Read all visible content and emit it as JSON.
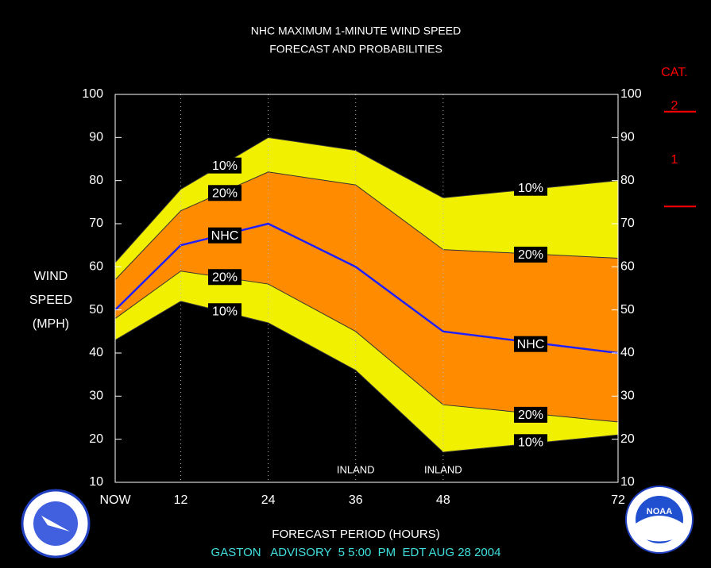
{
  "chart_data": {
    "type": "band",
    "title": [
      "NHC MAXIMUM 1-MINUTE WIND SPEED",
      "FORECAST AND PROBABILITIES"
    ],
    "y_label": [
      "WIND",
      "SPEED",
      "(MPH)"
    ],
    "x_label": "FORECAST PERIOD (HOURS)",
    "footer": "GASTON   ADVISORY  5 5:00  PM  EDT AUG 28 2004",
    "x": [
      3,
      12,
      24,
      36,
      48,
      72
    ],
    "xlim": [
      3,
      72
    ],
    "xticks": [
      {
        "value": 3,
        "label": "NOW"
      },
      12,
      24,
      36,
      48,
      72
    ],
    "ylim": [
      10,
      100
    ],
    "yticks": [
      10,
      20,
      30,
      40,
      50,
      60,
      70,
      80,
      90,
      100
    ],
    "series": [
      {
        "name": "10%",
        "color": "#f0f000",
        "values": [
          61,
          78,
          90,
          87,
          76,
          80
        ]
      },
      {
        "name": "20%",
        "color": "#ff8c00",
        "values": [
          57,
          73,
          82,
          79,
          64,
          62
        ]
      },
      {
        "name": "NHC",
        "color": "#2020ff",
        "values": [
          50,
          65,
          70,
          60,
          45,
          40
        ]
      },
      {
        "name": "20%",
        "color": "#ff8c00",
        "values": [
          48,
          59,
          56,
          45,
          28,
          24
        ]
      },
      {
        "name": "10%",
        "color": "#f0f000",
        "values": [
          43,
          52,
          47,
          36,
          17,
          21
        ]
      }
    ],
    "annotations": [
      {
        "text": "INLAND",
        "x": 36
      },
      {
        "text": "INLAND",
        "x": 48
      }
    ],
    "category": {
      "title": "CAT.",
      "levels": [
        "2",
        "1"
      ],
      "thresholds": [
        96,
        74
      ],
      "color": "#ff0000"
    }
  }
}
